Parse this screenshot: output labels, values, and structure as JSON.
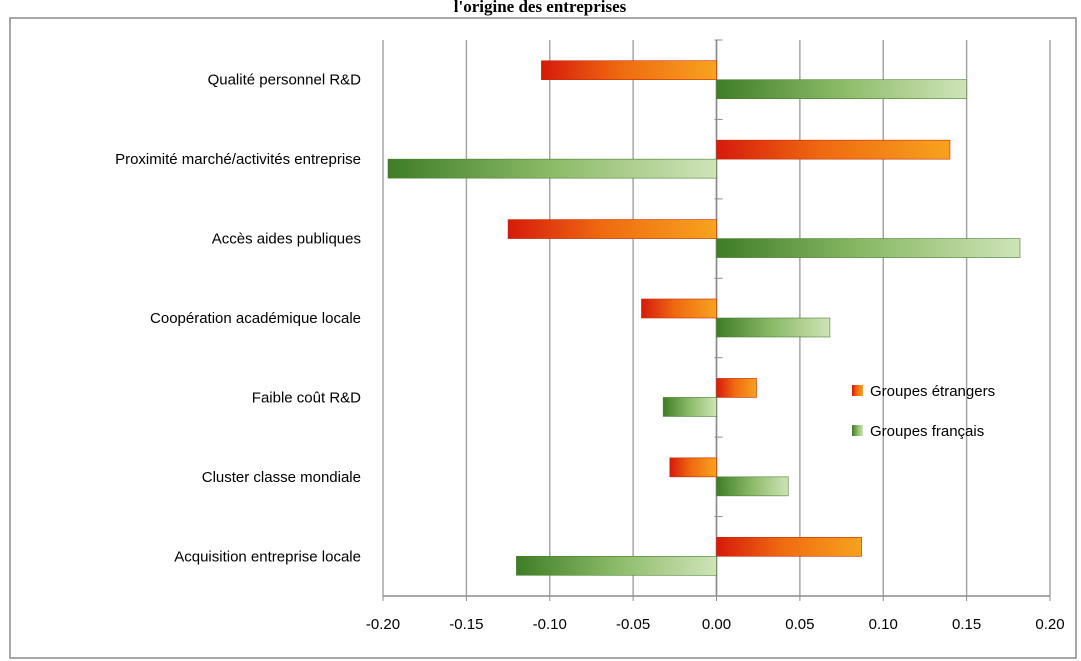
{
  "chart_data": {
    "type": "bar",
    "orientation": "horizontal",
    "title": "l'origine des entreprises",
    "categories": [
      "Qualité personnel R&D",
      "Proximité marché/activités entreprise",
      "Accès aides publiques",
      "Coopération académique  locale",
      "Faible coût R&D",
      "Cluster classe mondiale",
      "Acquisition entreprise locale"
    ],
    "series": [
      {
        "name": "Groupes étrangers",
        "values": [
          -0.105,
          0.14,
          -0.125,
          -0.045,
          0.024,
          -0.028,
          0.087
        ],
        "color": "#e8320f"
      },
      {
        "name": "Groupes français",
        "values": [
          0.15,
          -0.197,
          0.182,
          0.068,
          -0.032,
          0.043,
          -0.12
        ],
        "color": "#5a9a3c"
      }
    ],
    "xlim": [
      -0.2,
      0.2
    ],
    "xticks": [
      "-0.20",
      "-0.15",
      "-0.10",
      "-0.05",
      "0.00",
      "0.05",
      "0.10",
      "0.15",
      "0.20"
    ],
    "xlabel": "",
    "ylabel": "",
    "grid": "vertical",
    "legend": "right"
  }
}
